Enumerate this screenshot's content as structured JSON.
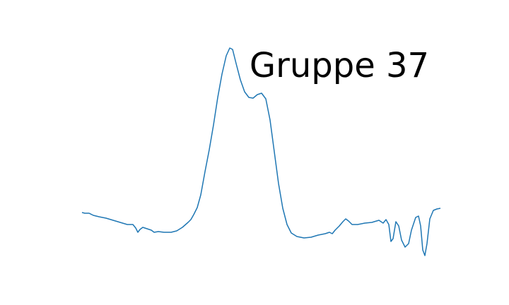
{
  "chart_data": {
    "type": "line",
    "title": "Gruppe 37",
    "color": "#1f77b4",
    "x": [
      0,
      4,
      10,
      16,
      24,
      34,
      44,
      54,
      64,
      72,
      76,
      79,
      82,
      86,
      92,
      98,
      102,
      108,
      116,
      126,
      134,
      142,
      150,
      154,
      158,
      163,
      168,
      174,
      180,
      186,
      192,
      198,
      204,
      209,
      213,
      218,
      224,
      230,
      236,
      242,
      248,
      254,
      260,
      266,
      272,
      278,
      284,
      290,
      296,
      304,
      314,
      324,
      334,
      344,
      350,
      354,
      358,
      364,
      369,
      373,
      377,
      382,
      390,
      400,
      410,
      420,
      426,
      430,
      434,
      437,
      440,
      444,
      448,
      452,
      457,
      462,
      466,
      472,
      476,
      479,
      482,
      485,
      488,
      492,
      497,
      502,
      507
    ],
    "values": [
      99,
      98,
      98,
      95,
      93,
      91,
      88,
      85,
      82,
      82,
      77,
      71,
      75,
      78,
      76,
      74,
      71,
      72,
      71,
      71,
      73,
      78,
      85,
      89,
      96,
      106,
      124,
      157,
      188,
      223,
      262,
      295,
      321,
      332,
      330,
      310,
      287,
      270,
      262,
      261,
      266,
      268,
      260,
      230,
      185,
      140,
      105,
      82,
      70,
      65,
      63,
      64,
      67,
      69,
      71,
      69,
      74,
      80,
      86,
      90,
      87,
      82,
      82,
      84,
      85,
      88,
      84,
      89,
      82,
      58,
      62,
      86,
      80,
      60,
      50,
      55,
      74,
      92,
      94,
      80,
      46,
      38,
      55,
      90,
      102,
      104,
      105
    ]
  }
}
